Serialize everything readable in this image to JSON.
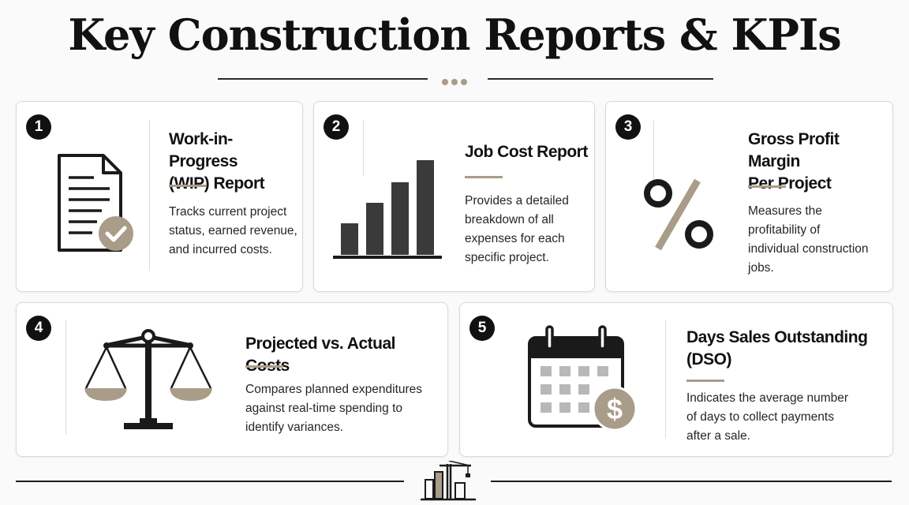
{
  "title": "Key Construction Reports & KPIs",
  "accent_color": "#a99c88",
  "cards": [
    {
      "number": "1",
      "icon": "document-check-icon",
      "heading_lines": [
        "Work-in-Progress",
        "(WIP) Report"
      ],
      "description_lines": [
        "Tracks current project",
        "status, earned revenue,",
        "and incurred costs."
      ]
    },
    {
      "number": "2",
      "icon": "bar-chart-icon",
      "heading_lines": [
        "Job Cost Report"
      ],
      "description_lines": [
        "Provides a detailed",
        "breakdown of all",
        "expenses for each",
        "specific project."
      ]
    },
    {
      "number": "3",
      "icon": "percent-icon",
      "heading_lines": [
        "Gross Profit Margin",
        "Per Project"
      ],
      "description_lines": [
        "Measures the",
        "profitability of",
        "individual construction",
        "jobs."
      ]
    },
    {
      "number": "4",
      "icon": "balance-scale-icon",
      "heading_lines": [
        "Projected vs. Actual Costs"
      ],
      "description_lines": [
        "Compares planned expenditures",
        "against real-time spending to",
        "identify variances."
      ]
    },
    {
      "number": "5",
      "icon": "calendar-dollar-icon",
      "heading_lines": [
        "Days Sales Outstanding",
        "(DSO)"
      ],
      "description_lines": [
        "Indicates the average number",
        "of days to collect payments",
        "after a sale."
      ]
    }
  ],
  "footer_icon": "construction-crane-icon"
}
